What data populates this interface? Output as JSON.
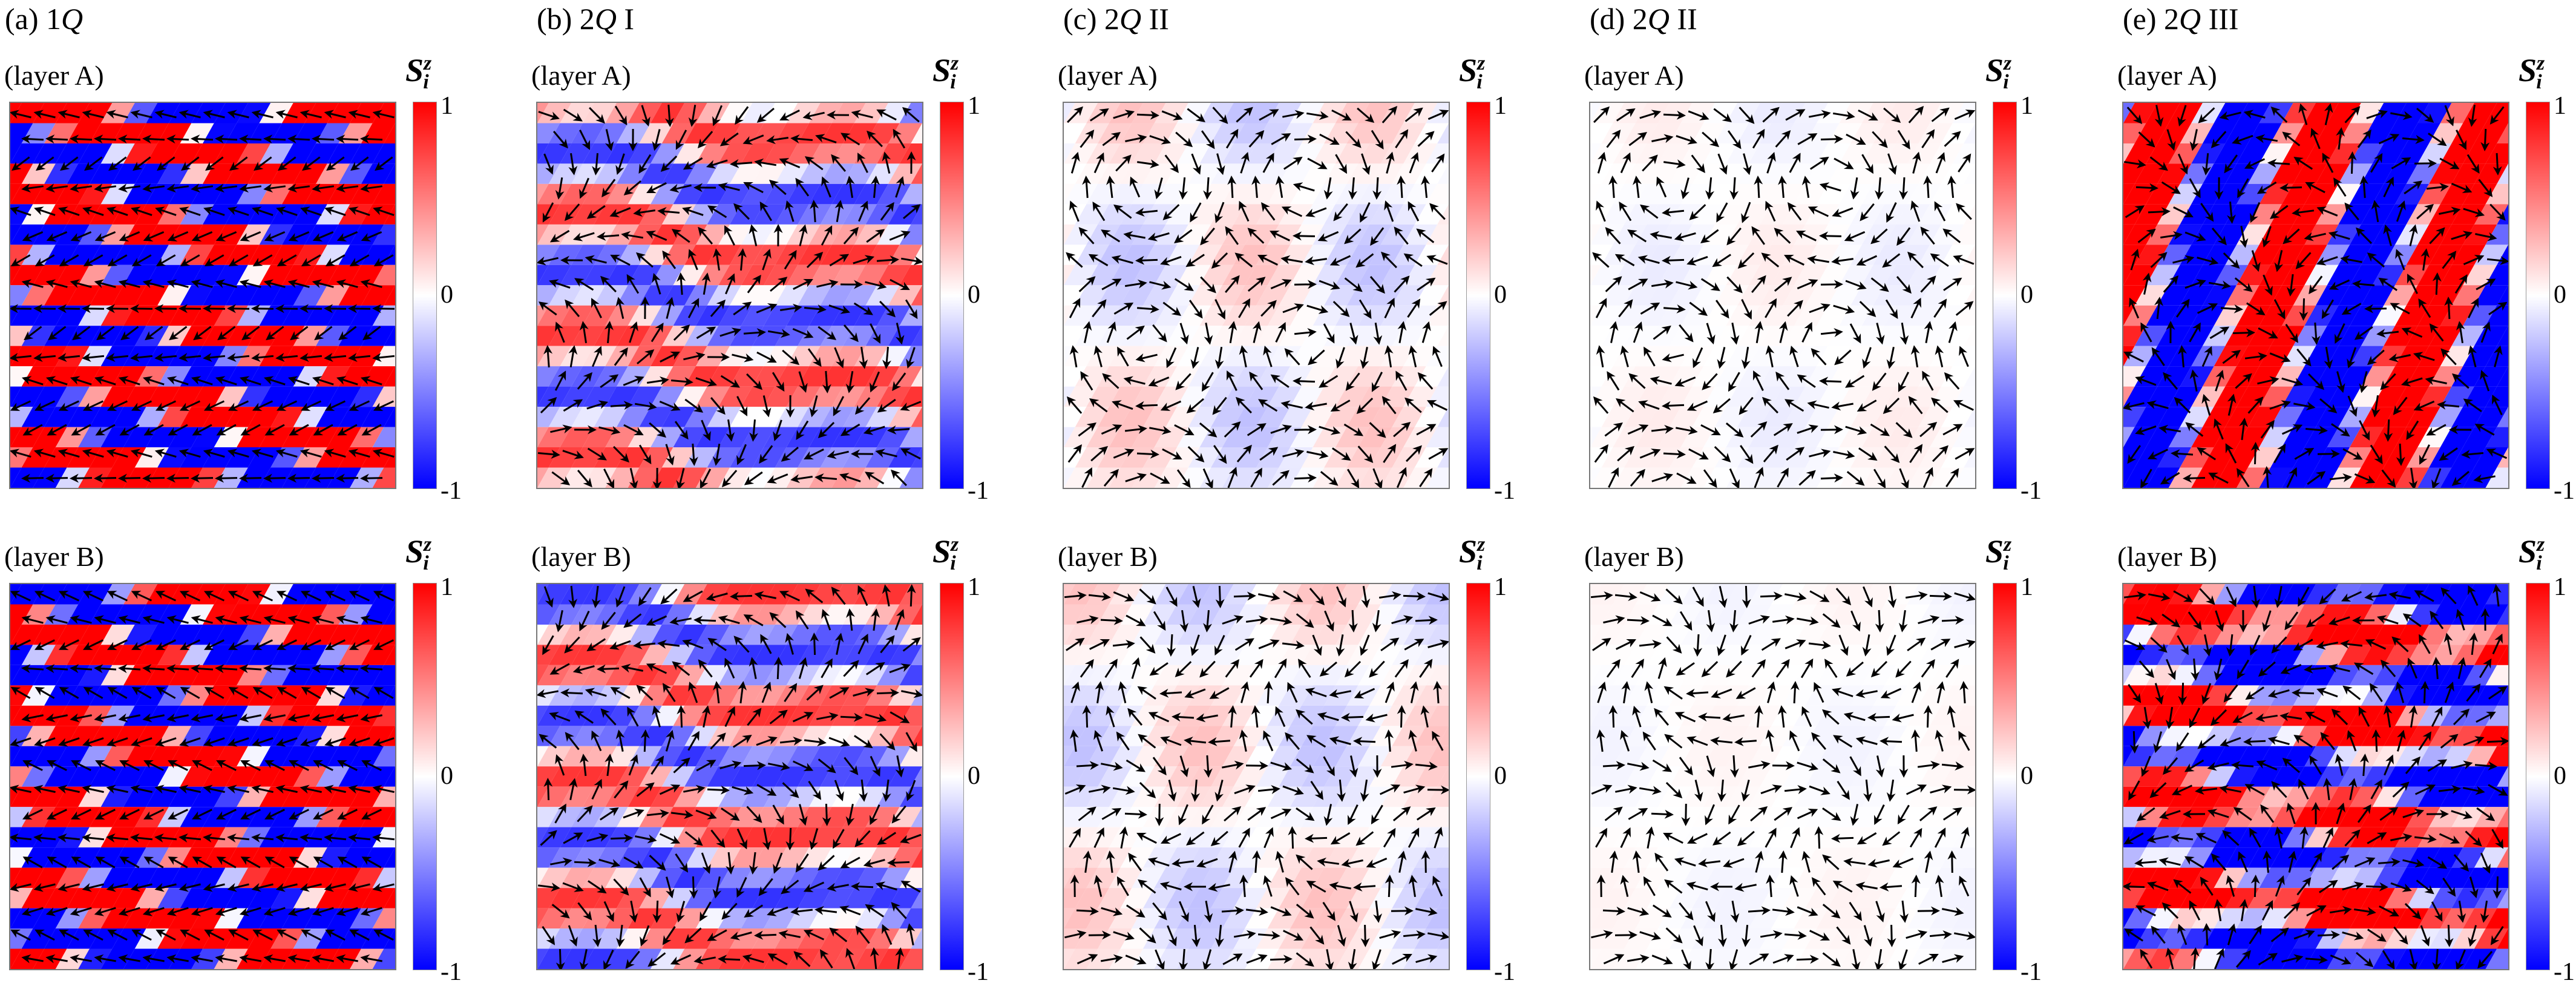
{
  "columns": [
    {
      "prefix": "(a) 1",
      "q": "Q",
      "suffix": ""
    },
    {
      "prefix": "(b) 2",
      "q": "Q",
      "suffix": " I"
    },
    {
      "prefix": "(c) 2",
      "q": "Q",
      "suffix": " II"
    },
    {
      "prefix": "(d) 2",
      "q": "Q",
      "suffix": " II"
    },
    {
      "prefix": "(e) 2",
      "q": "Q",
      "suffix": " III"
    }
  ],
  "layers": [
    "(layer A)",
    "(layer B)"
  ],
  "colorbar": {
    "title_base": "S",
    "title_sub": "i",
    "title_sup": "z",
    "ticks": [
      "1",
      "0",
      "-1"
    ],
    "range": [
      -1,
      1
    ],
    "colors": {
      "max": "#ff0000",
      "mid": "#ffffff",
      "min": "#0000ff"
    }
  },
  "chart_data": {
    "type": "heatmap",
    "description_kind": "spin texture with in-plane arrows on a triangular lattice",
    "panels": [
      {
        "column": "(a) 1Q",
        "layer": "(layer A)",
        "pattern": "stripe",
        "amplitude": 1.0
      },
      {
        "column": "(a) 1Q",
        "layer": "(layer B)",
        "pattern": "stripe",
        "amplitude": 1.0
      },
      {
        "column": "(b) 2Q I",
        "layer": "(layer A)",
        "pattern": "stripe-modulated",
        "amplitude": 0.8
      },
      {
        "column": "(b) 2Q I",
        "layer": "(layer B)",
        "pattern": "stripe-modulated",
        "amplitude": 0.8
      },
      {
        "column": "(c) 2Q II",
        "layer": "(layer A)",
        "pattern": "vortex",
        "amplitude": 0.25
      },
      {
        "column": "(c) 2Q II",
        "layer": "(layer B)",
        "pattern": "vortex",
        "amplitude": 0.25
      },
      {
        "column": "(d) 2Q II",
        "layer": "(layer A)",
        "pattern": "vortex",
        "amplitude": 0.08
      },
      {
        "column": "(d) 2Q II",
        "layer": "(layer B)",
        "pattern": "vortex",
        "amplitude": 0.05
      },
      {
        "column": "(e) 2Q III",
        "layer": "(layer A)",
        "pattern": "diagonal-bands",
        "amplitude": 1.0
      },
      {
        "column": "(e) 2Q III",
        "layer": "(layer B)",
        "pattern": "horizontal-bands",
        "amplitude": 1.0
      }
    ]
  }
}
